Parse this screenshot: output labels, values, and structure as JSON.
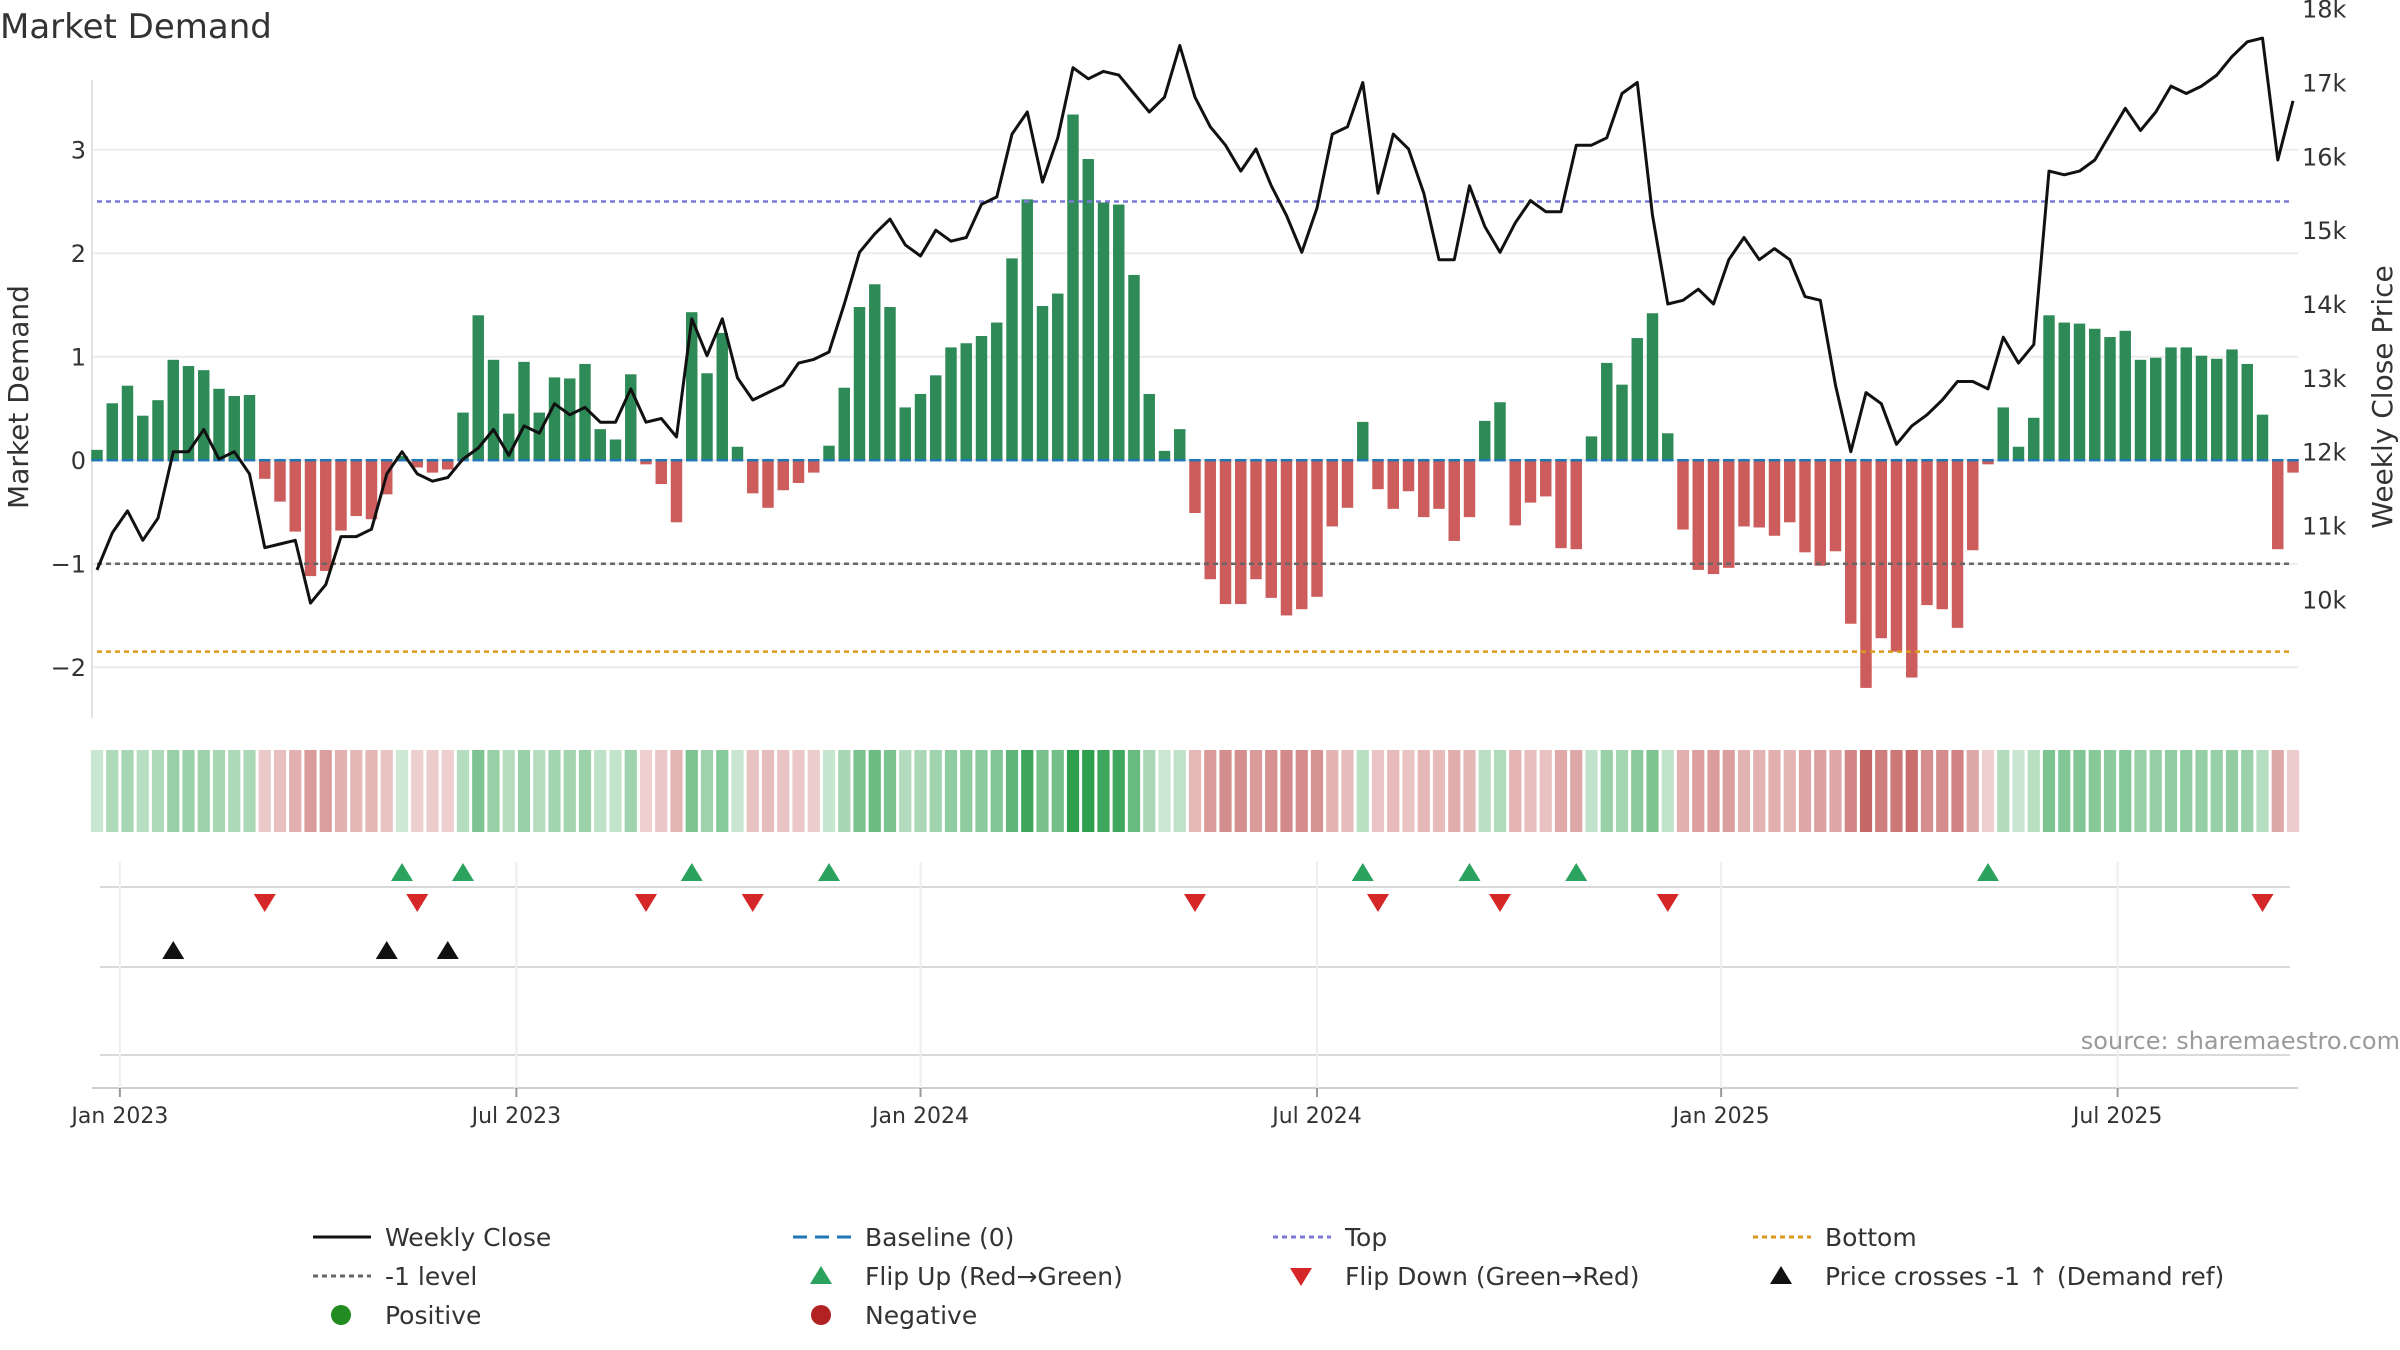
{
  "chart_data": {
    "type": "bar",
    "title": "Market Demand",
    "ylabel": "Market Demand",
    "y2label": "Weekly Close Price",
    "ylim": [
      -2.5,
      3.6
    ],
    "y2lim": [
      9600,
      18100
    ],
    "yticks": [
      {
        "v": 3,
        "label": "3"
      },
      {
        "v": 2,
        "label": "2"
      },
      {
        "v": 1,
        "label": "1"
      },
      {
        "v": 0,
        "label": "0"
      },
      {
        "v": -1,
        "label": "−1"
      },
      {
        "v": -2,
        "label": "−2"
      }
    ],
    "y2ticks": [
      {
        "v": 18000,
        "label": "18k"
      },
      {
        "v": 17000,
        "label": "17k"
      },
      {
        "v": 16000,
        "label": "16k"
      },
      {
        "v": 15000,
        "label": "15k"
      },
      {
        "v": 14000,
        "label": "14k"
      },
      {
        "v": 13000,
        "label": "13k"
      },
      {
        "v": 12000,
        "label": "12k"
      },
      {
        "v": 11000,
        "label": "11k"
      },
      {
        "v": 10000,
        "label": "10k"
      }
    ],
    "xticks": [
      {
        "i": 1.5,
        "label": "Jan 2023"
      },
      {
        "i": 27.5,
        "label": "Jul 2023"
      },
      {
        "i": 54,
        "label": "Jan 2024"
      },
      {
        "i": 80,
        "label": "Jul 2024"
      },
      {
        "i": 106.5,
        "label": "Jan 2025"
      },
      {
        "i": 132.5,
        "label": "Jul 2025"
      }
    ],
    "top_level": 2.5,
    "minus_one_level": -1,
    "bottom_level": -1.85,
    "demand": [
      0.1,
      0.55,
      0.72,
      0.43,
      0.58,
      0.97,
      0.91,
      0.87,
      0.69,
      0.62,
      0.63,
      -0.18,
      -0.4,
      -0.69,
      -1.12,
      -1.07,
      -0.68,
      -0.54,
      -0.57,
      -0.33,
      0.04,
      -0.07,
      -0.12,
      -0.09,
      0.46,
      1.4,
      0.97,
      0.45,
      0.95,
      0.46,
      0.8,
      0.79,
      0.93,
      0.3,
      0.2,
      0.83,
      -0.04,
      -0.23,
      -0.6,
      1.43,
      0.84,
      1.23,
      0.13,
      -0.32,
      -0.46,
      -0.29,
      -0.22,
      -0.12,
      0.14,
      0.7,
      1.48,
      1.7,
      1.48,
      0.51,
      0.64,
      0.82,
      1.09,
      1.13,
      1.2,
      1.33,
      1.95,
      2.52,
      1.49,
      1.61,
      3.34,
      2.91,
      2.49,
      2.47,
      1.79,
      0.64,
      0.09,
      0.3,
      -0.51,
      -1.15,
      -1.39,
      -1.39,
      -1.15,
      -1.33,
      -1.5,
      -1.44,
      -1.32,
      -0.64,
      -0.46,
      0.37,
      -0.28,
      -0.47,
      -0.3,
      -0.55,
      -0.47,
      -0.78,
      -0.55,
      0.38,
      0.56,
      -0.63,
      -0.41,
      -0.35,
      -0.85,
      -0.86,
      0.23,
      0.94,
      0.73,
      1.18,
      1.42,
      0.26,
      -0.67,
      -1.06,
      -1.1,
      -1.04,
      -0.64,
      -0.65,
      -0.73,
      -0.6,
      -0.89,
      -1.02,
      -0.88,
      -1.58,
      -2.2,
      -1.72,
      -1.85,
      -2.1,
      -1.4,
      -1.44,
      -1.62,
      -0.87,
      -0.04,
      0.51,
      0.13,
      0.41,
      1.4,
      1.33,
      1.32,
      1.27,
      1.19,
      1.25,
      0.97,
      0.99,
      1.09,
      1.09,
      1.01,
      0.98,
      1.07,
      0.93,
      0.44,
      -0.86,
      -0.12
    ],
    "close": [
      10400,
      10900,
      11200,
      10800,
      11100,
      12000,
      12000,
      12300,
      11900,
      12000,
      11700,
      10700,
      10750,
      10800,
      9950,
      10200,
      10850,
      10850,
      10950,
      11700,
      12000,
      11700,
      11600,
      11650,
      11900,
      12050,
      12300,
      11950,
      12350,
      12250,
      12650,
      12500,
      12600,
      12400,
      12400,
      12850,
      12400,
      12450,
      12200,
      13800,
      13300,
      13800,
      13000,
      12700,
      12800,
      12900,
      13200,
      13250,
      13350,
      14000,
      14700,
      14950,
      15150,
      14800,
      14650,
      15000,
      14850,
      14900,
      15350,
      15450,
      16300,
      16600,
      15650,
      16250,
      17200,
      17050,
      17150,
      17100,
      16850,
      16600,
      16800,
      17500,
      16800,
      16400,
      16150,
      15800,
      16100,
      15600,
      15200,
      14700,
      15300,
      16300,
      16400,
      17000,
      15500,
      16300,
      16100,
      15500,
      14600,
      14600,
      15600,
      15050,
      14700,
      15100,
      15400,
      15250,
      15250,
      16150,
      16150,
      16250,
      16850,
      17000,
      15200,
      14000,
      14050,
      14200,
      14000,
      14600,
      14900,
      14600,
      14750,
      14600,
      14100,
      14050,
      12900,
      12000,
      12800,
      12650,
      12100,
      12350,
      12500,
      12700,
      12950,
      12950,
      12850,
      13550,
      13200,
      13450,
      15800,
      15750,
      15800,
      15950,
      16300,
      16650,
      16350,
      16600,
      16950,
      16850,
      16950,
      17100,
      17350,
      17550,
      17600,
      15950,
      16750
    ],
    "heat_strip": "shade per week follows market demand",
    "flip_up_weeks": [
      20,
      24,
      39,
      48,
      83,
      90,
      97,
      124
    ],
    "flip_down_weeks": [
      11,
      21,
      36,
      43,
      72,
      84,
      92,
      103,
      142
    ],
    "price_cross_weeks": [
      5,
      19,
      23
    ],
    "legend": [
      {
        "key": "close",
        "label": "Weekly Close"
      },
      {
        "key": "baseline",
        "label": "Baseline (0)"
      },
      {
        "key": "top",
        "label": "Top"
      },
      {
        "key": "bottom",
        "label": "Bottom"
      },
      {
        "key": "minus1",
        "label": "-1 level"
      },
      {
        "key": "flipup",
        "label": "Flip Up (Red→Green)"
      },
      {
        "key": "flipdown",
        "label": "Flip Down (Green→Red)"
      },
      {
        "key": "cross",
        "label": "Price crosses -1 ↑ (Demand ref)"
      },
      {
        "key": "positive",
        "label": "Positive"
      },
      {
        "key": "negative",
        "label": "Negative"
      }
    ],
    "source": "source: sharemaestro.com"
  },
  "colors": {
    "positive_bar": "#2e8b57",
    "negative_bar": "#cd5c5c",
    "close_line": "#111111",
    "top_line": "#7b78d8",
    "bottom_line": "#d99a1a",
    "minus1_line": "#666666",
    "baseline": "#1f77b4",
    "flip_up": "#2ca25f",
    "flip_down": "#d62728",
    "cross": "#111111",
    "positive_dot": "#228b22",
    "negative_dot": "#b22222"
  }
}
